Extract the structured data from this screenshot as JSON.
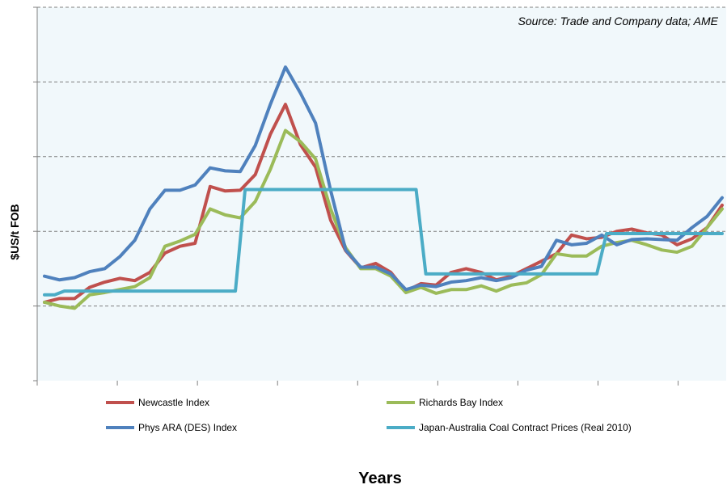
{
  "chart_data": {
    "type": "line",
    "source_note": "Source: Trade and Company data; AME",
    "xlabel": "Years",
    "ylabel": "$US/t FOB",
    "ylim": [
      0,
      5
    ],
    "y_gridlines": [
      1,
      2,
      3,
      4,
      5
    ],
    "x_tick_count": 8,
    "grid": true,
    "legend_position": "bottom",
    "x": [
      0,
      1,
      2,
      3,
      4,
      5,
      6,
      7,
      8,
      9,
      10,
      11,
      12,
      13,
      14,
      15,
      16,
      17,
      18,
      19,
      20,
      21,
      22,
      23,
      24,
      25,
      26,
      27,
      28,
      29,
      30,
      31,
      32,
      33,
      34,
      35,
      36,
      37,
      38,
      39,
      40,
      41,
      42,
      43,
      44,
      45
    ],
    "series": [
      {
        "name": "Newcastle Index",
        "color": "#c0504d",
        "values": [
          1.05,
          1.1,
          1.1,
          1.25,
          1.32,
          1.37,
          1.34,
          1.45,
          1.71,
          1.8,
          1.84,
          2.6,
          2.54,
          2.55,
          2.76,
          3.3,
          3.7,
          3.16,
          2.86,
          2.15,
          1.74,
          1.51,
          1.57,
          1.45,
          1.2,
          1.3,
          1.28,
          1.45,
          1.5,
          1.45,
          1.35,
          1.4,
          1.5,
          1.6,
          1.7,
          1.95,
          1.9,
          1.92,
          2.0,
          2.03,
          1.98,
          1.95,
          1.82,
          1.9,
          2.05,
          2.35
        ]
      },
      {
        "name": "Richards Bay Index",
        "color": "#9bbb59",
        "values": [
          1.05,
          1.0,
          0.97,
          1.15,
          1.18,
          1.22,
          1.26,
          1.38,
          1.8,
          1.87,
          1.96,
          2.3,
          2.22,
          2.18,
          2.4,
          2.83,
          3.35,
          3.2,
          2.97,
          2.3,
          1.78,
          1.5,
          1.5,
          1.4,
          1.18,
          1.25,
          1.17,
          1.22,
          1.22,
          1.27,
          1.2,
          1.28,
          1.31,
          1.42,
          1.7,
          1.67,
          1.67,
          1.8,
          1.85,
          1.88,
          1.82,
          1.75,
          1.72,
          1.8,
          2.05,
          2.3
        ]
      },
      {
        "name": "Phys ARA (DES) Index",
        "color": "#4f81bd",
        "values": [
          1.4,
          1.35,
          1.38,
          1.46,
          1.5,
          1.66,
          1.88,
          2.3,
          2.55,
          2.55,
          2.62,
          2.85,
          2.81,
          2.8,
          3.15,
          3.7,
          4.2,
          3.85,
          3.45,
          2.55,
          1.75,
          1.52,
          1.52,
          1.43,
          1.22,
          1.28,
          1.26,
          1.32,
          1.34,
          1.38,
          1.34,
          1.38,
          1.48,
          1.53,
          1.88,
          1.82,
          1.84,
          1.95,
          1.82,
          1.89,
          1.9,
          1.89,
          1.88,
          2.05,
          2.2,
          2.45
        ]
      },
      {
        "name": "Japan-Australia Coal Contract Prices (Real 2010)",
        "color": "#4bacc6",
        "values": [
          1.15,
          1.2,
          1.2,
          1.2,
          1.2,
          1.2,
          1.2,
          1.2,
          1.2,
          1.2,
          1.2,
          1.2,
          1.2,
          2.56,
          2.56,
          2.56,
          2.56,
          2.56,
          2.56,
          2.56,
          2.56,
          2.56,
          2.56,
          2.56,
          2.56,
          1.43,
          1.43,
          1.43,
          1.43,
          1.43,
          1.43,
          1.43,
          1.43,
          1.43,
          1.43,
          1.43,
          1.43,
          1.97,
          1.97,
          1.97,
          1.97,
          1.97,
          1.97,
          1.97,
          1.97,
          1.97
        ]
      }
    ]
  }
}
